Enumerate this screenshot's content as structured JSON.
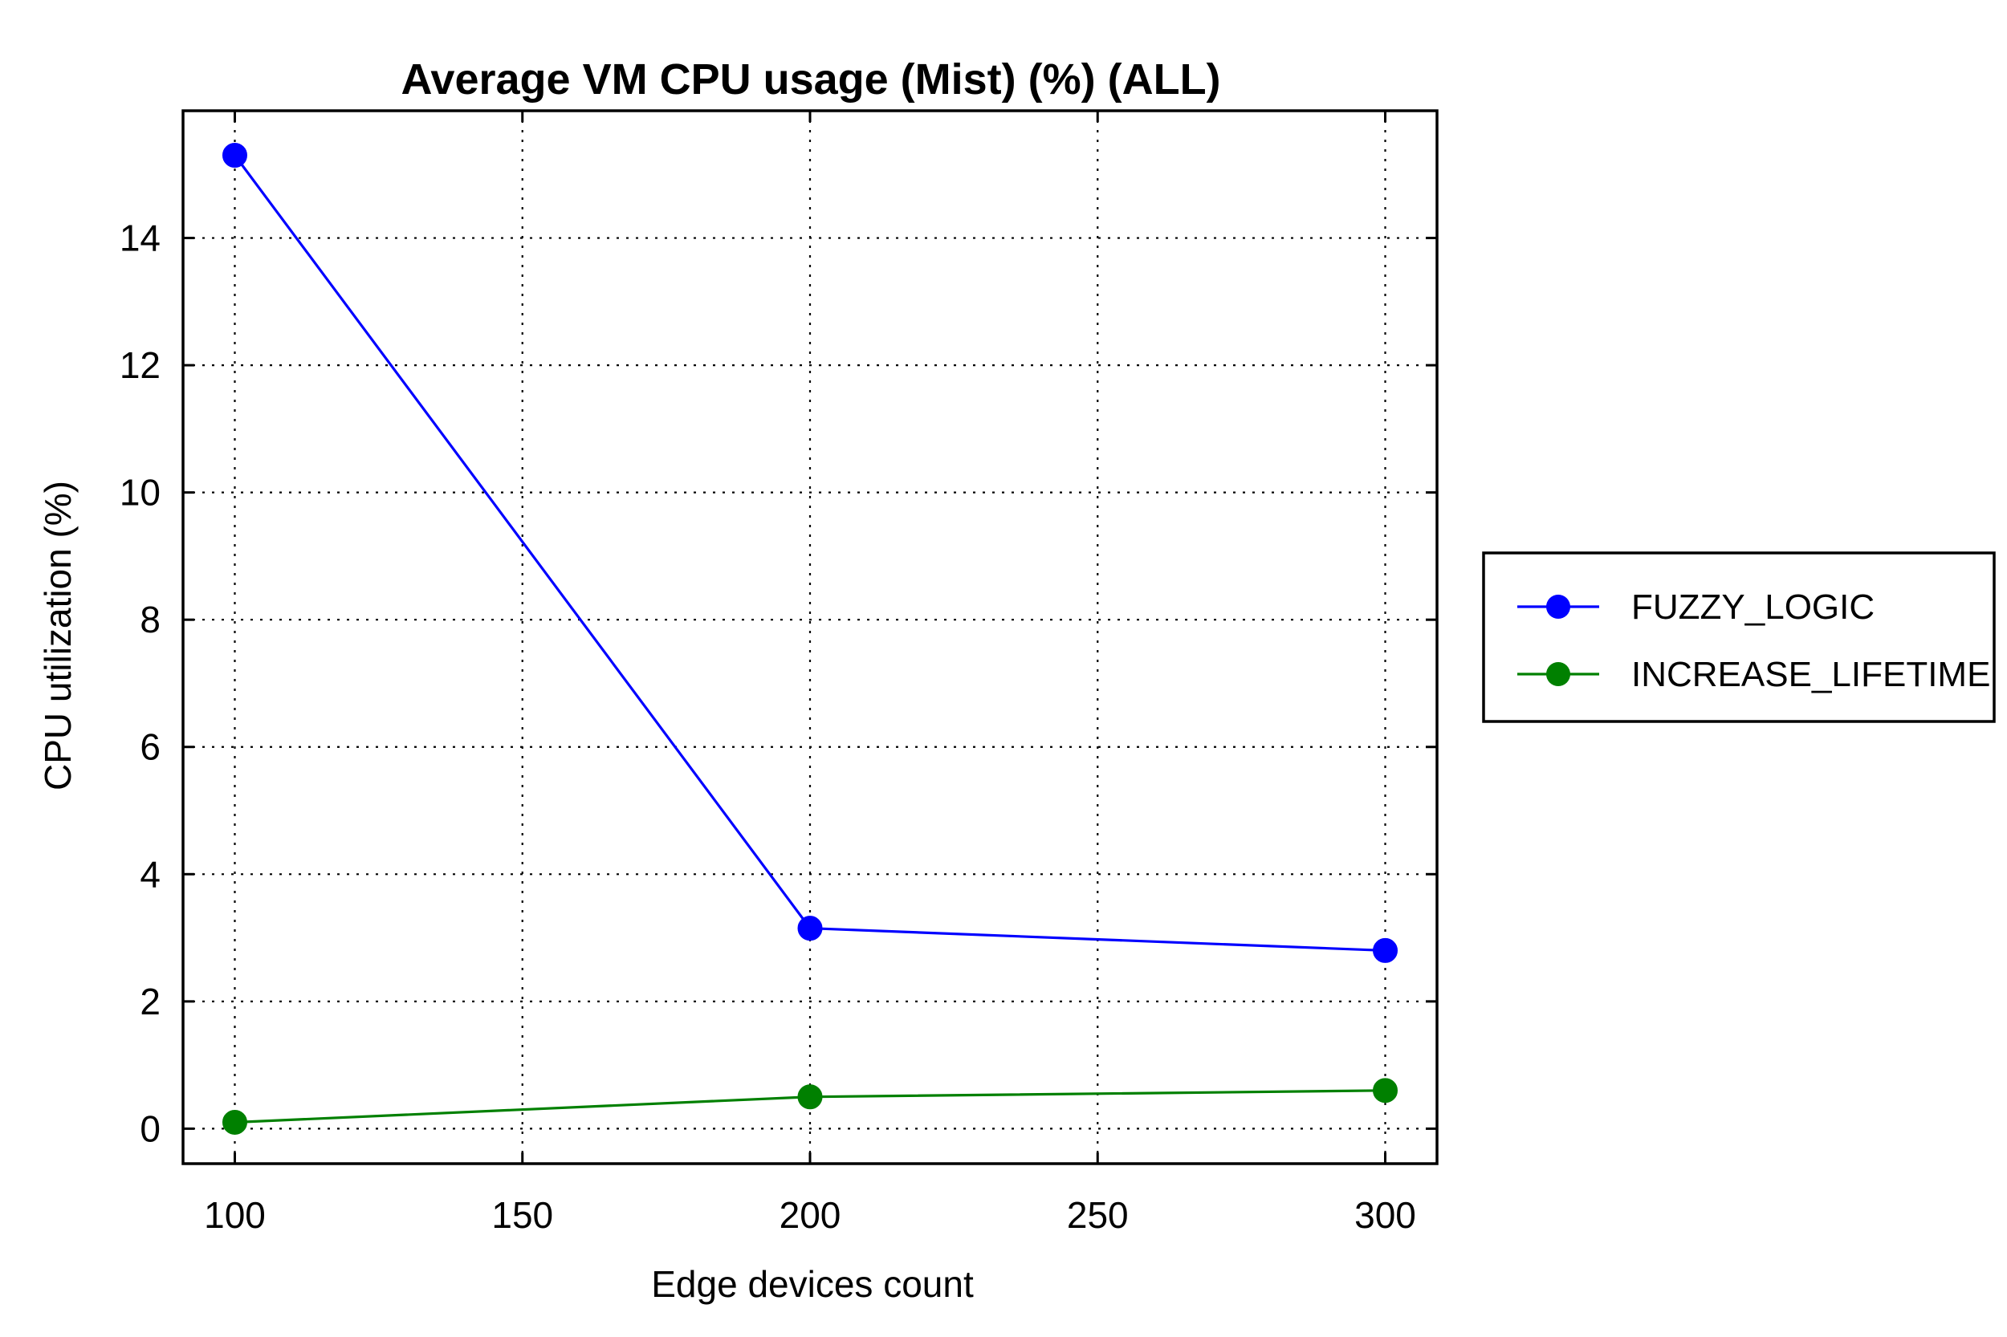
{
  "chart_data": {
    "type": "line",
    "title": "Average VM CPU usage (Mist) (%) (ALL)",
    "xlabel": "Edge devices count",
    "ylabel": "CPU utilization (%)",
    "x": [
      100,
      200,
      300
    ],
    "xlim": [
      91,
      309
    ],
    "ylim": [
      -0.55,
      16
    ],
    "xticks": [
      100,
      150,
      200,
      250,
      300
    ],
    "yticks": [
      0,
      2,
      4,
      6,
      8,
      10,
      12,
      14
    ],
    "grid": true,
    "legend_position": "right, outside plot",
    "series": [
      {
        "name": "FUZZY_LOGIC",
        "color": "#0000ff",
        "marker": "circle",
        "values": [
          15.3,
          3.15,
          2.8
        ]
      },
      {
        "name": "INCREASE_LIFETIME",
        "color": "#008000",
        "marker": "circle",
        "values": [
          0.1,
          0.5,
          0.6
        ]
      }
    ]
  }
}
